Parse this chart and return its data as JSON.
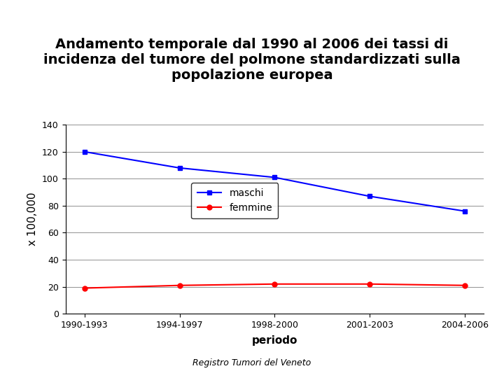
{
  "title_line1": "Andamento temporale dal 1990 al 2006 dei tassi di",
  "title_line2": "incidenza del tumore del polmone standardizzati sulla",
  "title_line3": "popolazione europea",
  "x_labels": [
    "1990-1993",
    "1994-1997",
    "1998-2000",
    "2001-2003",
    "2004-2006"
  ],
  "maschi_values": [
    120,
    108,
    101,
    87,
    76
  ],
  "femmine_values": [
    19,
    21,
    22,
    22,
    21
  ],
  "maschi_color": "#0000FF",
  "femmine_color": "#FF0000",
  "xlabel": "periodo",
  "ylabel": "x 100,000",
  "ylim": [
    0,
    140
  ],
  "yticks": [
    0,
    20,
    40,
    60,
    80,
    100,
    120,
    140
  ],
  "footnote": "Registro Tumori del Veneto",
  "legend_maschi": "maschi",
  "legend_femmine": "femmine",
  "bg_color": "#FFFFFF",
  "title_fontsize": 14,
  "axis_label_fontsize": 11,
  "tick_fontsize": 9,
  "legend_fontsize": 10,
  "footnote_fontsize": 9
}
